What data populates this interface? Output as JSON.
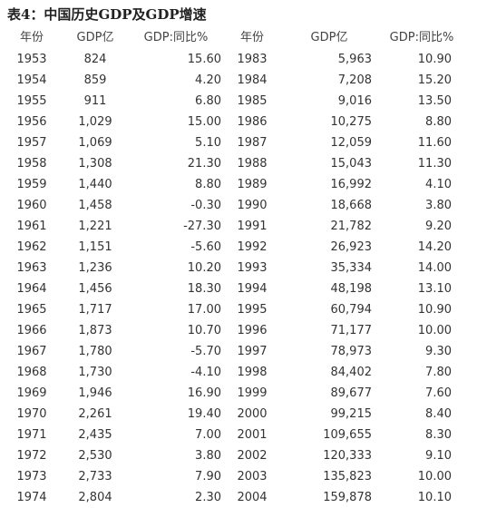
{
  "title": "表4：中国历史GDP及GDP增速",
  "headers": [
    "年份",
    "GDP亿",
    "GDP:同比%",
    "年份",
    "GDP亿",
    "GDP:同比%"
  ],
  "rows": [
    [
      "1953",
      "824",
      "15.60",
      "1983",
      "5,963",
      "10.90"
    ],
    [
      "1954",
      "859",
      "4.20",
      "1984",
      "7,208",
      "15.20"
    ],
    [
      "1955",
      "911",
      "6.80",
      "1985",
      "9,016",
      "13.50"
    ],
    [
      "1956",
      "1,029",
      "15.00",
      "1986",
      "10,275",
      "8.80"
    ],
    [
      "1957",
      "1,069",
      "5.10",
      "1987",
      "12,059",
      "11.60"
    ],
    [
      "1958",
      "1,308",
      "21.30",
      "1988",
      "15,043",
      "11.30"
    ],
    [
      "1959",
      "1,440",
      "8.80",
      "1989",
      "16,992",
      "4.10"
    ],
    [
      "1960",
      "1,458",
      "-0.30",
      "1990",
      "18,668",
      "3.80"
    ],
    [
      "1961",
      "1,221",
      "-27.30",
      "1991",
      "21,782",
      "9.20"
    ],
    [
      "1962",
      "1,151",
      "-5.60",
      "1992",
      "26,923",
      "14.20"
    ],
    [
      "1963",
      "1,236",
      "10.20",
      "1993",
      "35,334",
      "14.00"
    ],
    [
      "1964",
      "1,456",
      "18.30",
      "1994",
      "48,198",
      "13.10"
    ],
    [
      "1965",
      "1,717",
      "17.00",
      "1995",
      "60,794",
      "10.90"
    ],
    [
      "1966",
      "1,873",
      "10.70",
      "1996",
      "71,177",
      "10.00"
    ],
    [
      "1967",
      "1,780",
      "-5.70",
      "1997",
      "78,973",
      "9.30"
    ],
    [
      "1968",
      "1,730",
      "-4.10",
      "1998",
      "84,402",
      "7.80"
    ],
    [
      "1969",
      "1,946",
      "16.90",
      "1999",
      "89,677",
      "7.60"
    ],
    [
      "1970",
      "2,261",
      "19.40",
      "2000",
      "99,215",
      "8.40"
    ],
    [
      "1971",
      "2,435",
      "7.00",
      "2001",
      "109,655",
      "8.30"
    ],
    [
      "1972",
      "2,530",
      "3.80",
      "2002",
      "120,333",
      "9.10"
    ],
    [
      "1973",
      "2,733",
      "7.90",
      "2003",
      "135,823",
      "10.00"
    ],
    [
      "1974",
      "2,804",
      "2.30",
      "2004",
      "159,878",
      "10.10"
    ]
  ]
}
